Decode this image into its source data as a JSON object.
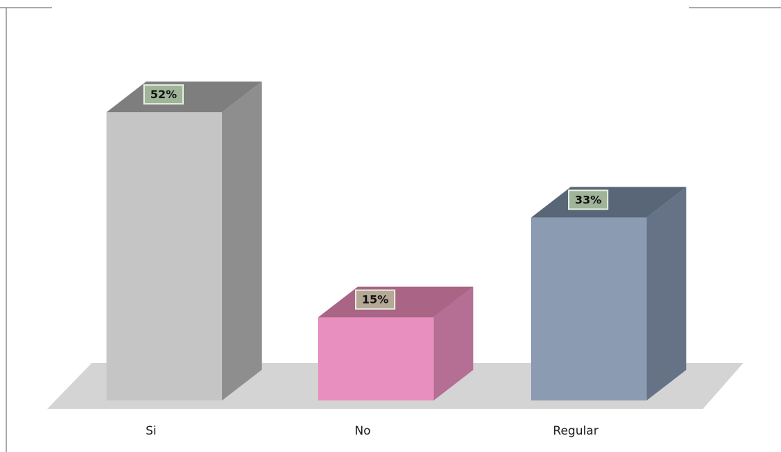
{
  "chart_data": {
    "type": "bar",
    "style": "3d",
    "categories": [
      "Si",
      "No",
      "Regular"
    ],
    "values": [
      52,
      15,
      33
    ],
    "value_labels": [
      "52%",
      "15%",
      "33%"
    ],
    "unit": "%",
    "ylim": [
      0,
      60
    ],
    "grid": false,
    "legend": "none",
    "bar_colors": {
      "front": [
        "#c5c5c5",
        "#e98fc0",
        "#8a9bb2"
      ],
      "side": [
        "#8e8e8e",
        "#b56e94",
        "#667387"
      ],
      "top": [
        "#7e7e7e",
        "#a96486",
        "#596678"
      ]
    },
    "floor_color": "#d4d4d4",
    "data_label_box": {
      "fill": [
        "#a0b49a",
        "#b6a897",
        "#a0b49a"
      ],
      "border": "#e4efe0"
    }
  }
}
